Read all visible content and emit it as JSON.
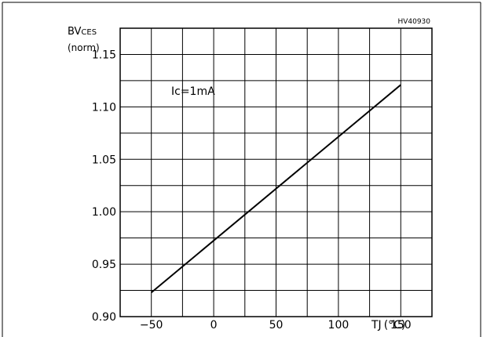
{
  "chart_data": {
    "type": "line",
    "figure_code": "HV40930",
    "ylabel": {
      "main": "BV",
      "sub": "CES",
      "unit": "(norm)"
    },
    "xlabel": {
      "main": "TJ",
      "unit": "(°C)"
    },
    "annotation": "Ic=1mA",
    "xlim": [
      -75,
      175
    ],
    "ylim": [
      0.9,
      1.175
    ],
    "grid": true,
    "x_ticks": [
      -50,
      0,
      50,
      100,
      150
    ],
    "x_tick_labels": [
      "−50",
      "0",
      "50",
      "100",
      "150"
    ],
    "y_ticks": [
      0.9,
      0.95,
      1.0,
      1.05,
      1.1,
      1.15
    ],
    "y_tick_labels": [
      "0.90",
      "0.95",
      "1.00",
      "1.05",
      "1.10",
      "1.15"
    ],
    "series": [
      {
        "x": [
          -50,
          150
        ],
        "y": [
          0.923,
          1.121
        ]
      }
    ]
  }
}
